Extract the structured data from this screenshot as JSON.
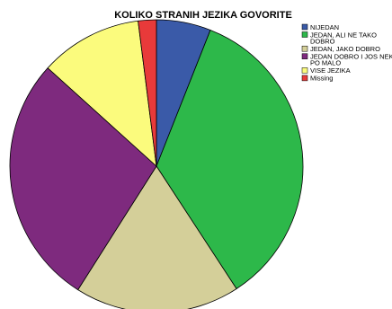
{
  "chart_data": {
    "type": "pie",
    "title": "KOLIKO STRANIH JEZIKA GOVORITE",
    "legend_position": "top-right",
    "slices": [
      {
        "label": [
          "NIJEDAN"
        ],
        "value": 6.0,
        "color": "#3a5aa8"
      },
      {
        "label": [
          "JEDAN, ALI NE TAKO",
          "DOBRO"
        ],
        "value": 34.8,
        "color": "#2db84a"
      },
      {
        "label": [
          "JEDAN, JAKO DOBRO"
        ],
        "value": 18.2,
        "color": "#d4cf99"
      },
      {
        "label": [
          "JEDAN DOBRO I JOS NEKI",
          "PO MALO"
        ],
        "value": 27.7,
        "color": "#7e2a7e"
      },
      {
        "label": [
          "VISE JEZIKA"
        ],
        "value": 11.3,
        "color": "#fbfb7d"
      },
      {
        "label": [
          "Missing"
        ],
        "value": 2.0,
        "color": "#e83a3a"
      }
    ]
  }
}
